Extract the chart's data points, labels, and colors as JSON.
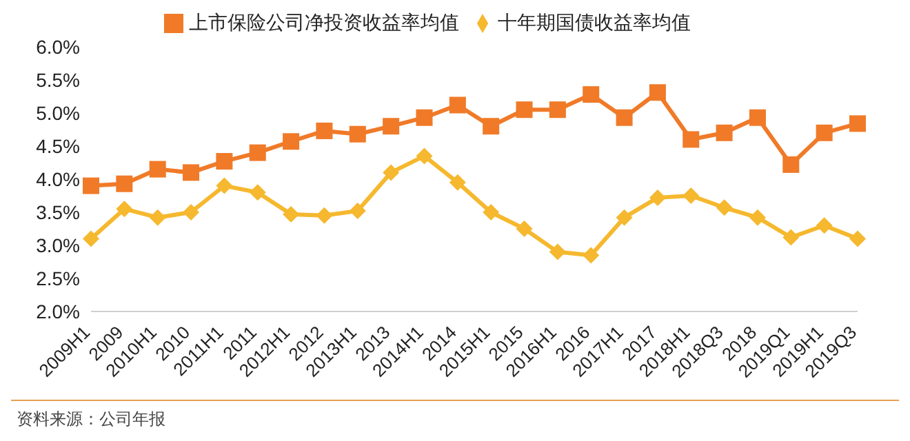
{
  "chart_data": {
    "type": "line",
    "categories": [
      "2009H1",
      "2009",
      "2010H1",
      "2010",
      "2011H1",
      "2011",
      "2012H1",
      "2012",
      "2013H1",
      "2013",
      "2014H1",
      "2014",
      "2015H1",
      "2015",
      "2016H1",
      "2016",
      "2017H1",
      "2017",
      "2018H1",
      "2018Q3",
      "2018",
      "2019Q1",
      "2019H1",
      "2019Q3"
    ],
    "series": [
      {
        "name": "上市保险公司净投资收益率均值",
        "color": "#f07a28",
        "marker": "square",
        "values": [
          3.9,
          3.93,
          4.15,
          4.1,
          4.27,
          4.4,
          4.57,
          4.73,
          4.68,
          4.8,
          4.93,
          5.12,
          4.8,
          5.05,
          5.05,
          5.28,
          4.93,
          5.31,
          4.6,
          4.7,
          4.93,
          4.22,
          4.7,
          4.84
        ]
      },
      {
        "name": "十年期国债收益率均值",
        "color": "#f5b82e",
        "marker": "diamond",
        "values": [
          3.1,
          3.55,
          3.42,
          3.5,
          3.9,
          3.8,
          3.47,
          3.45,
          3.52,
          4.1,
          4.35,
          3.95,
          3.5,
          3.25,
          2.9,
          2.85,
          3.42,
          3.72,
          3.75,
          3.57,
          3.42,
          3.12,
          3.3,
          3.1
        ]
      }
    ],
    "ylim": [
      2,
      6
    ],
    "yticks": [
      {
        "value": 2,
        "label": "2.0%"
      },
      {
        "value": 2.5,
        "label": "2.5%"
      },
      {
        "value": 3,
        "label": "3.0%"
      },
      {
        "value": 3.5,
        "label": "3.5%"
      },
      {
        "value": 4,
        "label": "4.0%"
      },
      {
        "value": 4.5,
        "label": "4.5%"
      },
      {
        "value": 5,
        "label": "5.0%"
      },
      {
        "value": 5.5,
        "label": "5.5%"
      },
      {
        "value": 6,
        "label": "6.0%"
      }
    ],
    "grid": false,
    "legend": "top",
    "line_style": "solid",
    "annotations": [
      "资料来源：公司年报"
    ]
  }
}
